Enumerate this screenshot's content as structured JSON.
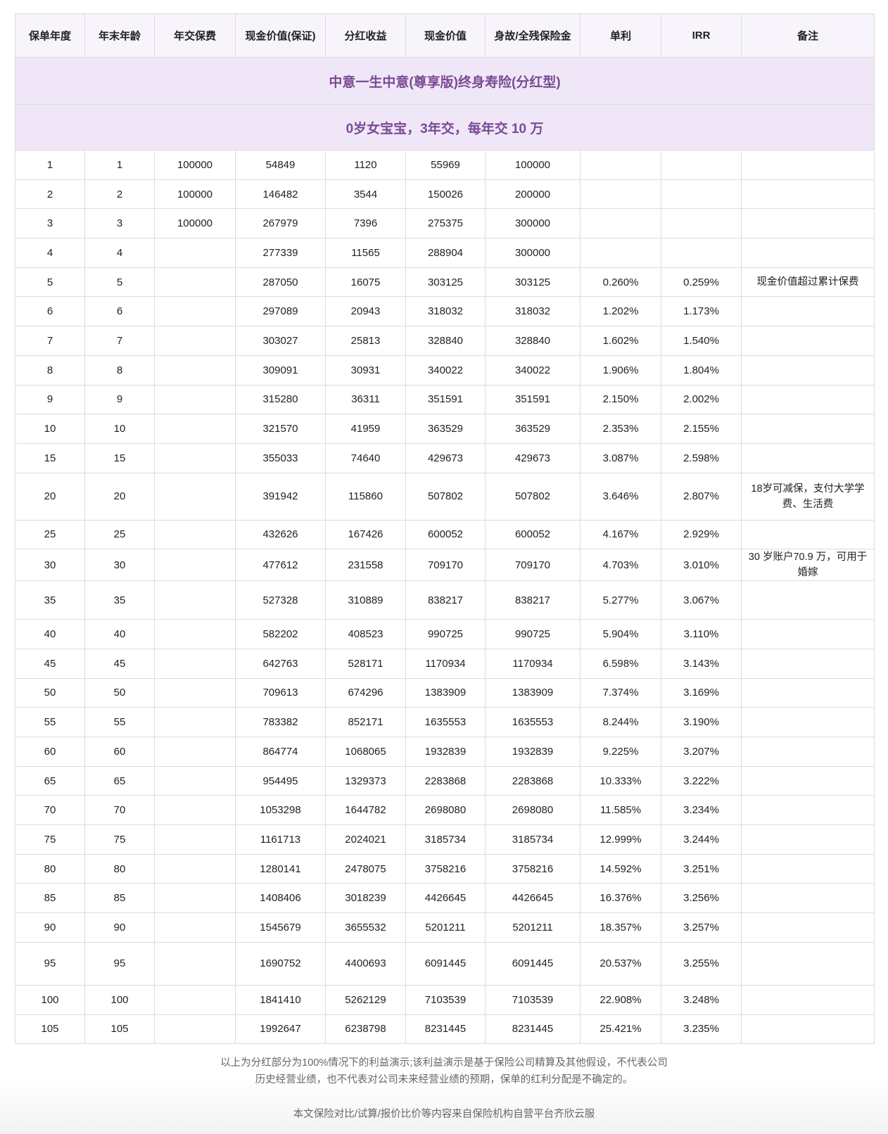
{
  "title": "中意一生中意(尊享版)终身寿险(分红型)",
  "subtitle": "0岁女宝宝，3年交，每年交 10 万",
  "colors": {
    "title_bg": "#efe7f7",
    "title_text": "#7a4a94",
    "header_bg": "#f8f4fc"
  },
  "columns": [
    "保单年度",
    "年末年龄",
    "年交保费",
    "现金价值(保证)",
    "分红收益",
    "现金价值",
    "身故/全残保险金",
    "单利",
    "IRR",
    "备注"
  ],
  "rows": [
    [
      "1",
      "1",
      "100000",
      "54849",
      "1120",
      "55969",
      "100000",
      "",
      "",
      ""
    ],
    [
      "2",
      "2",
      "100000",
      "146482",
      "3544",
      "150026",
      "200000",
      "",
      "",
      ""
    ],
    [
      "3",
      "3",
      "100000",
      "267979",
      "7396",
      "275375",
      "300000",
      "",
      "",
      ""
    ],
    [
      "4",
      "4",
      "",
      "277339",
      "11565",
      "288904",
      "300000",
      "",
      "",
      ""
    ],
    [
      "5",
      "5",
      "",
      "287050",
      "16075",
      "303125",
      "303125",
      "0.260%",
      "0.259%",
      "现金价值超过累计保费"
    ],
    [
      "6",
      "6",
      "",
      "297089",
      "20943",
      "318032",
      "318032",
      "1.202%",
      "1.173%",
      ""
    ],
    [
      "7",
      "7",
      "",
      "303027",
      "25813",
      "328840",
      "328840",
      "1.602%",
      "1.540%",
      ""
    ],
    [
      "8",
      "8",
      "",
      "309091",
      "30931",
      "340022",
      "340022",
      "1.906%",
      "1.804%",
      ""
    ],
    [
      "9",
      "9",
      "",
      "315280",
      "36311",
      "351591",
      "351591",
      "2.150%",
      "2.002%",
      ""
    ],
    [
      "10",
      "10",
      "",
      "321570",
      "41959",
      "363529",
      "363529",
      "2.353%",
      "2.155%",
      ""
    ],
    [
      "15",
      "15",
      "",
      "355033",
      "74640",
      "429673",
      "429673",
      "3.087%",
      "2.598%",
      ""
    ],
    [
      "20",
      "20",
      "",
      "391942",
      "115860",
      "507802",
      "507802",
      "3.646%",
      "2.807%",
      "18岁可减保，支付大学学费、生活费"
    ],
    [
      "25",
      "25",
      "",
      "432626",
      "167426",
      "600052",
      "600052",
      "4.167%",
      "2.929%",
      ""
    ],
    [
      "30",
      "30",
      "",
      "477612",
      "231558",
      "709170",
      "709170",
      "4.703%",
      "3.010%",
      "30 岁账户70.9 万，可用于婚嫁"
    ],
    [
      "35",
      "35",
      "",
      "527328",
      "310889",
      "838217",
      "838217",
      "5.277%",
      "3.067%",
      ""
    ],
    [
      "40",
      "40",
      "",
      "582202",
      "408523",
      "990725",
      "990725",
      "5.904%",
      "3.110%",
      ""
    ],
    [
      "45",
      "45",
      "",
      "642763",
      "528171",
      "1170934",
      "1170934",
      "6.598%",
      "3.143%",
      ""
    ],
    [
      "50",
      "50",
      "",
      "709613",
      "674296",
      "1383909",
      "1383909",
      "7.374%",
      "3.169%",
      ""
    ],
    [
      "55",
      "55",
      "",
      "783382",
      "852171",
      "1635553",
      "1635553",
      "8.244%",
      "3.190%",
      ""
    ],
    [
      "60",
      "60",
      "",
      "864774",
      "1068065",
      "1932839",
      "1932839",
      "9.225%",
      "3.207%",
      ""
    ],
    [
      "65",
      "65",
      "",
      "954495",
      "1329373",
      "2283868",
      "2283868",
      "10.333%",
      "3.222%",
      ""
    ],
    [
      "70",
      "70",
      "",
      "1053298",
      "1644782",
      "2698080",
      "2698080",
      "11.585%",
      "3.234%",
      ""
    ],
    [
      "75",
      "75",
      "",
      "1161713",
      "2024021",
      "3185734",
      "3185734",
      "12.999%",
      "3.244%",
      ""
    ],
    [
      "80",
      "80",
      "",
      "1280141",
      "2478075",
      "3758216",
      "3758216",
      "14.592%",
      "3.251%",
      ""
    ],
    [
      "85",
      "85",
      "",
      "1408406",
      "3018239",
      "4426645",
      "4426645",
      "16.376%",
      "3.256%",
      ""
    ],
    [
      "90",
      "90",
      "",
      "1545679",
      "3655532",
      "5201211",
      "5201211",
      "18.357%",
      "3.257%",
      ""
    ],
    [
      "95",
      "95",
      "",
      "1690752",
      "4400693",
      "6091445",
      "6091445",
      "20.537%",
      "3.255%",
      ""
    ],
    [
      "100",
      "100",
      "",
      "1841410",
      "5262129",
      "7103539",
      "7103539",
      "22.908%",
      "3.248%",
      ""
    ],
    [
      "105",
      "105",
      "",
      "1992647",
      "6238798",
      "8231445",
      "8231445",
      "25.421%",
      "3.235%",
      ""
    ]
  ],
  "footer": {
    "disclaimer_line1": "以上为分红部分为100%情况下的利益演示;该利益演示是基于保险公司精算及其他假设，不代表公司",
    "disclaimer_line2": "历史经营业绩，也不代表对公司未来经营业绩的预期，保单的红利分配是不确定的。",
    "source": "本文保险对比/试算/报价比价等内容来自保险机构自营平台齐欣云服"
  }
}
